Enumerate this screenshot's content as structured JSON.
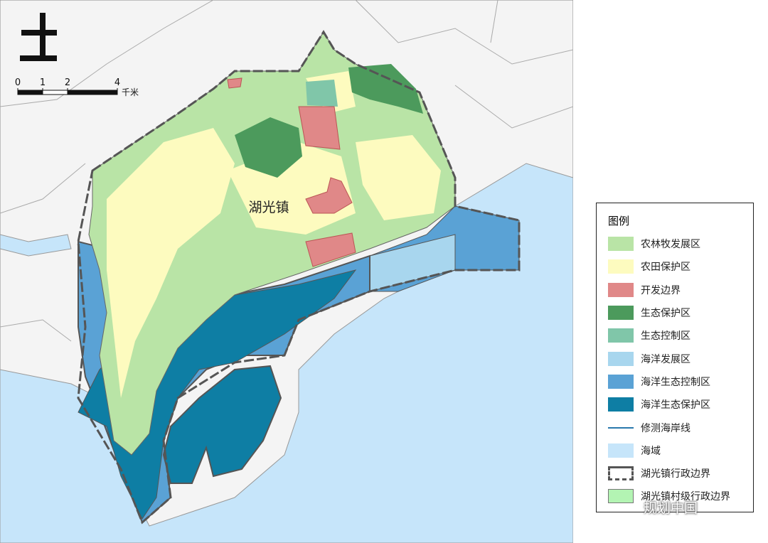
{
  "map_label": "湖光镇",
  "scale": {
    "ticks": [
      0,
      1,
      2,
      4
    ],
    "unit": "千米"
  },
  "legend": {
    "title": "图例",
    "items": [
      {
        "label": "农林牧发展区",
        "kind": "patch",
        "color": "#b9e4a6"
      },
      {
        "label": "农田保护区",
        "kind": "patch",
        "color": "#fdfbbf"
      },
      {
        "label": "开发边界",
        "kind": "patch",
        "color": "#e08888"
      },
      {
        "label": "生态保护区",
        "kind": "patch",
        "color": "#4c9a5c"
      },
      {
        "label": "生态控制区",
        "kind": "patch",
        "color": "#80c6a9"
      },
      {
        "label": "海洋发展区",
        "kind": "patch",
        "color": "#a8d6ee"
      },
      {
        "label": "海洋生态控制区",
        "kind": "patch",
        "color": "#5aa2d5"
      },
      {
        "label": "海洋生态保护区",
        "kind": "patch",
        "color": "#0e7ea4"
      },
      {
        "label": "修测海岸线",
        "kind": "line",
        "color": "#2a78ad"
      },
      {
        "label": "海域",
        "kind": "patch",
        "color": "#c6e5fa"
      },
      {
        "label": "湖光镇行政边界",
        "kind": "boundary",
        "color": "#555555"
      },
      {
        "label": "湖光镇村级行政边界",
        "kind": "outlined",
        "color": "#b3f4b3"
      }
    ]
  },
  "watermark": "规划中国"
}
